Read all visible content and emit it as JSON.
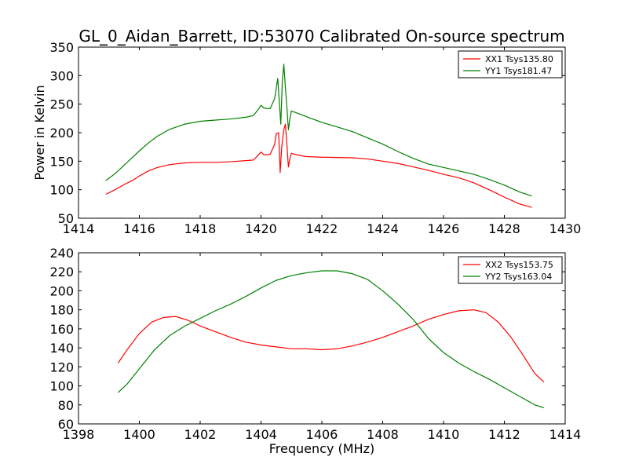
{
  "figure": {
    "title": "GL_0_Aidan_Barrett, ID:53070 Calibrated On-source spectrum",
    "xlabel": "Frequency (MHz)",
    "ylabel": "Power in Kelvin"
  },
  "chart_data": [
    {
      "type": "line",
      "title": "GL_0_Aidan_Barrett, ID:53070 Calibrated On-source spectrum",
      "xlabel": "",
      "ylabel": "Power in Kelvin",
      "xlim": [
        1414,
        1430
      ],
      "ylim": [
        50,
        350
      ],
      "xticks": [
        1414,
        1416,
        1418,
        1420,
        1422,
        1424,
        1426,
        1428,
        1430
      ],
      "yticks": [
        50,
        100,
        150,
        200,
        250,
        300,
        350
      ],
      "grid": false,
      "legend_position": "top-right",
      "series": [
        {
          "name": "XX1 Tsys135.80",
          "color": "#ff0000",
          "points": [
            [
              1414.9,
              92
            ],
            [
              1415.2,
              100
            ],
            [
              1415.5,
              109
            ],
            [
              1415.8,
              117
            ],
            [
              1416.0,
              124
            ],
            [
              1416.3,
              133
            ],
            [
              1416.6,
              139
            ],
            [
              1417.0,
              144
            ],
            [
              1417.5,
              147
            ],
            [
              1418.0,
              148
            ],
            [
              1418.5,
              148
            ],
            [
              1419.0,
              149
            ],
            [
              1419.5,
              151
            ],
            [
              1419.75,
              152
            ],
            [
              1419.9,
              160
            ],
            [
              1420.0,
              166
            ],
            [
              1420.1,
              161
            ],
            [
              1420.3,
              162
            ],
            [
              1420.45,
              180
            ],
            [
              1420.5,
              198
            ],
            [
              1420.58,
              200
            ],
            [
              1420.63,
              130
            ],
            [
              1420.68,
              175
            ],
            [
              1420.75,
              205
            ],
            [
              1420.8,
              215
            ],
            [
              1420.85,
              180
            ],
            [
              1420.9,
              140
            ],
            [
              1420.95,
              155
            ],
            [
              1421.0,
              164
            ],
            [
              1421.1,
              162
            ],
            [
              1421.5,
              158
            ],
            [
              1422.0,
              157
            ],
            [
              1423.0,
              156
            ],
            [
              1423.5,
              154
            ],
            [
              1424.0,
              150
            ],
            [
              1424.5,
              146
            ],
            [
              1425.0,
              140
            ],
            [
              1425.5,
              134
            ],
            [
              1426.0,
              127
            ],
            [
              1426.5,
              121
            ],
            [
              1427.0,
              112
            ],
            [
              1427.5,
              100
            ],
            [
              1428.0,
              87
            ],
            [
              1428.5,
              75
            ],
            [
              1428.9,
              69
            ]
          ]
        },
        {
          "name": "YY1 Tsys181.47",
          "color": "#008000",
          "points": [
            [
              1414.9,
              116
            ],
            [
              1415.2,
              128
            ],
            [
              1415.5,
              143
            ],
            [
              1415.8,
              158
            ],
            [
              1416.0,
              168
            ],
            [
              1416.3,
              182
            ],
            [
              1416.6,
              194
            ],
            [
              1417.0,
              206
            ],
            [
              1417.5,
              215
            ],
            [
              1418.0,
              220
            ],
            [
              1418.5,
              222
            ],
            [
              1419.0,
              224
            ],
            [
              1419.5,
              227
            ],
            [
              1419.75,
              230
            ],
            [
              1419.9,
              240
            ],
            [
              1420.0,
              248
            ],
            [
              1420.1,
              243
            ],
            [
              1420.3,
              242
            ],
            [
              1420.45,
              260
            ],
            [
              1420.55,
              295
            ],
            [
              1420.6,
              255
            ],
            [
              1420.65,
              215
            ],
            [
              1420.7,
              290
            ],
            [
              1420.75,
              320
            ],
            [
              1420.8,
              280
            ],
            [
              1420.85,
              245
            ],
            [
              1420.9,
              205
            ],
            [
              1420.95,
              225
            ],
            [
              1421.0,
              238
            ],
            [
              1421.1,
              236
            ],
            [
              1421.5,
              228
            ],
            [
              1422.0,
              218
            ],
            [
              1422.5,
              210
            ],
            [
              1423.0,
              202
            ],
            [
              1423.5,
              191
            ],
            [
              1424.0,
              180
            ],
            [
              1424.5,
              167
            ],
            [
              1425.0,
              155
            ],
            [
              1425.5,
              145
            ],
            [
              1426.0,
              139
            ],
            [
              1426.5,
              133
            ],
            [
              1427.0,
              127
            ],
            [
              1427.5,
              118
            ],
            [
              1428.0,
              108
            ],
            [
              1428.5,
              96
            ],
            [
              1428.9,
              89
            ]
          ]
        }
      ]
    },
    {
      "type": "line",
      "title": "",
      "xlabel": "Frequency (MHz)",
      "ylabel": "",
      "xlim": [
        1398,
        1414
      ],
      "ylim": [
        60,
        240
      ],
      "xticks": [
        1398,
        1400,
        1402,
        1404,
        1406,
        1408,
        1410,
        1412,
        1414
      ],
      "yticks": [
        60,
        80,
        100,
        120,
        140,
        160,
        180,
        200,
        220,
        240
      ],
      "grid": false,
      "legend_position": "top-right",
      "series": [
        {
          "name": "XX2 Tsys153.75",
          "color": "#ff0000",
          "points": [
            [
              1399.3,
              124
            ],
            [
              1399.6,
              138
            ],
            [
              1400.0,
              155
            ],
            [
              1400.4,
              167
            ],
            [
              1400.8,
              172
            ],
            [
              1401.2,
              173
            ],
            [
              1401.6,
              169
            ],
            [
              1402.0,
              163
            ],
            [
              1402.5,
              157
            ],
            [
              1403.0,
              151
            ],
            [
              1403.5,
              146
            ],
            [
              1404.0,
              143
            ],
            [
              1404.5,
              141
            ],
            [
              1405.0,
              139
            ],
            [
              1405.5,
              139
            ],
            [
              1406.0,
              138
            ],
            [
              1406.5,
              139
            ],
            [
              1407.0,
              142
            ],
            [
              1407.5,
              146
            ],
            [
              1408.0,
              151
            ],
            [
              1408.5,
              157
            ],
            [
              1409.0,
              163
            ],
            [
              1409.5,
              170
            ],
            [
              1410.0,
              175
            ],
            [
              1410.5,
              179
            ],
            [
              1411.0,
              180
            ],
            [
              1411.4,
              177
            ],
            [
              1411.8,
              167
            ],
            [
              1412.2,
              152
            ],
            [
              1412.6,
              133
            ],
            [
              1413.0,
              113
            ],
            [
              1413.3,
              104
            ]
          ]
        },
        {
          "name": "YY2 Tsys163.04",
          "color": "#008000",
          "points": [
            [
              1399.3,
              93
            ],
            [
              1399.6,
              102
            ],
            [
              1400.0,
              118
            ],
            [
              1400.5,
              138
            ],
            [
              1401.0,
              153
            ],
            [
              1401.5,
              163
            ],
            [
              1402.0,
              171
            ],
            [
              1402.5,
              179
            ],
            [
              1403.0,
              186
            ],
            [
              1403.5,
              194
            ],
            [
              1404.0,
              203
            ],
            [
              1404.5,
              211
            ],
            [
              1405.0,
              216
            ],
            [
              1405.5,
              219
            ],
            [
              1406.0,
              221
            ],
            [
              1406.5,
              221
            ],
            [
              1407.0,
              218
            ],
            [
              1407.5,
              212
            ],
            [
              1408.0,
              200
            ],
            [
              1408.5,
              186
            ],
            [
              1409.0,
              170
            ],
            [
              1409.5,
              150
            ],
            [
              1410.0,
              135
            ],
            [
              1410.5,
              124
            ],
            [
              1411.0,
              115
            ],
            [
              1411.5,
              107
            ],
            [
              1412.0,
              98
            ],
            [
              1412.5,
              89
            ],
            [
              1413.0,
              80
            ],
            [
              1413.3,
              77
            ]
          ]
        }
      ]
    }
  ]
}
